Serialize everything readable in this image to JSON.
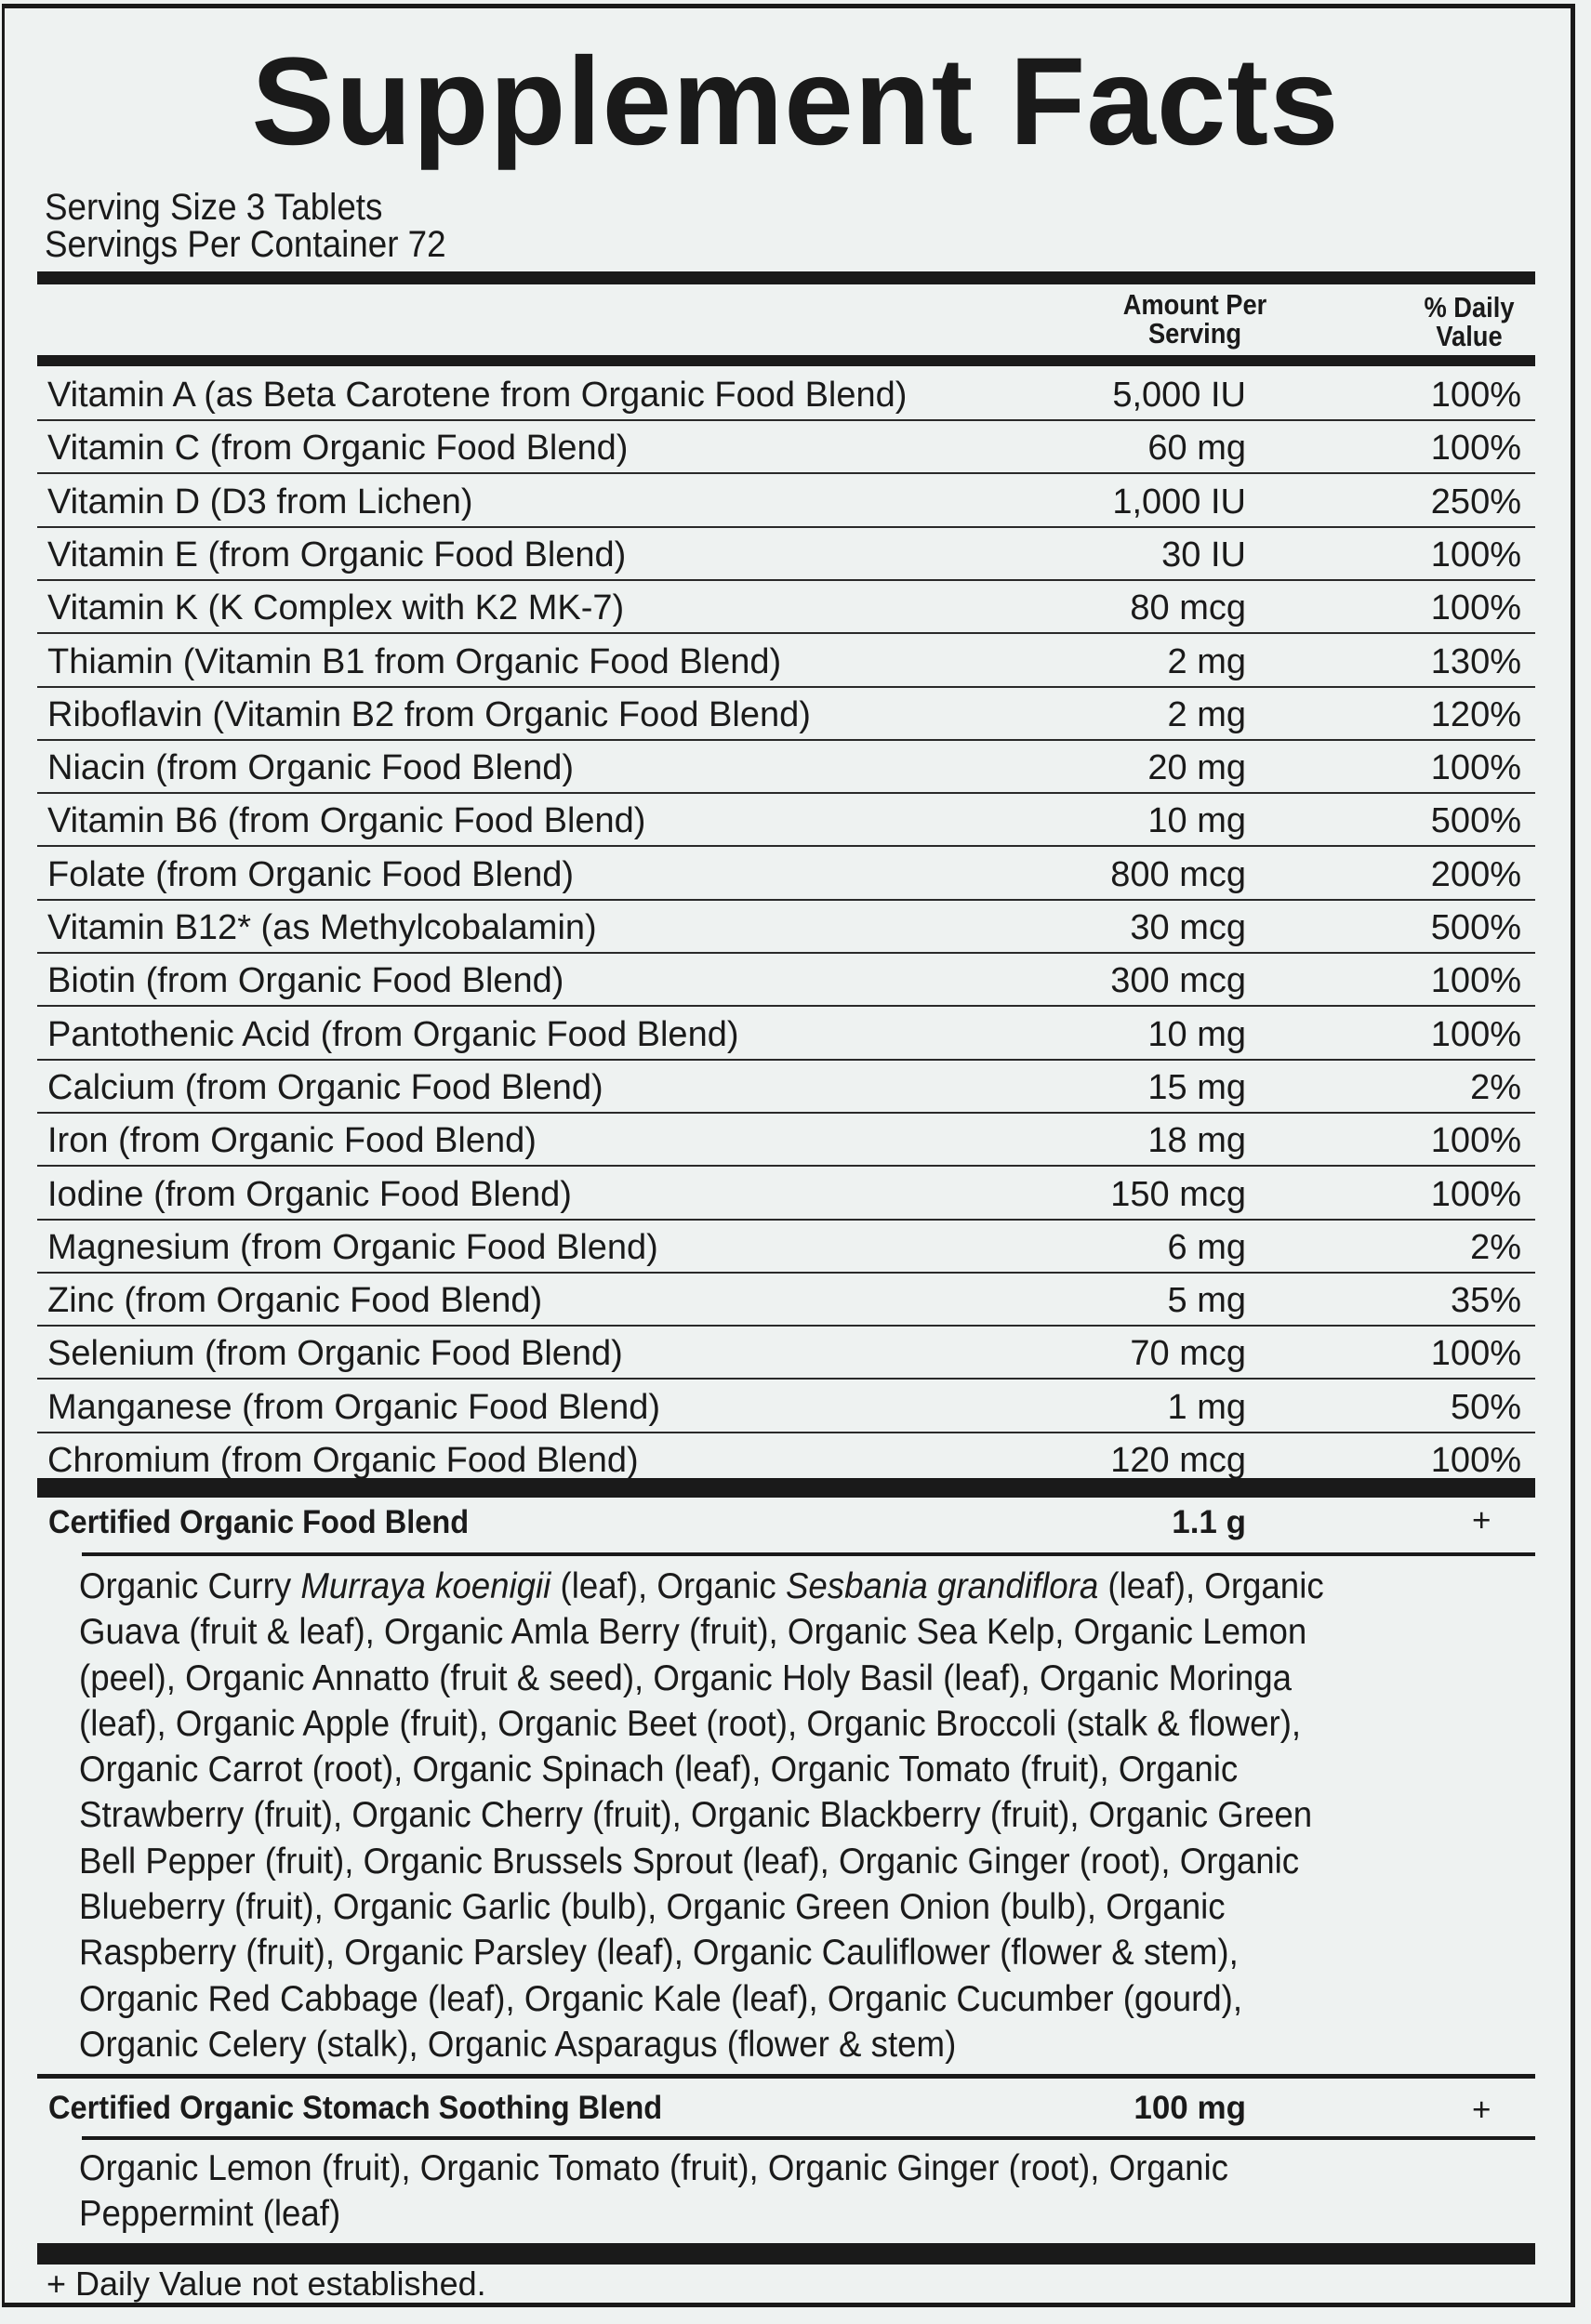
{
  "title": "Supplement Facts",
  "serving_size": "Serving Size 3 Tablets",
  "servings_per_container": "Servings Per Container 72",
  "headers": {
    "amount_line1": "Amount Per",
    "amount_line2": "Serving",
    "dv_line1": "% Daily",
    "dv_line2": "Value"
  },
  "nutrients": [
    {
      "name": "Vitamin A (as Beta Carotene from Organic Food Blend)",
      "amount": "5,000 IU",
      "dv": "100%"
    },
    {
      "name": "Vitamin C (from Organic Food Blend)",
      "amount": "60 mg",
      "dv": "100%"
    },
    {
      "name": "Vitamin D (D3 from Lichen)",
      "amount": "1,000 IU",
      "dv": "250%"
    },
    {
      "name": "Vitamin E (from Organic Food Blend)",
      "amount": "30 IU",
      "dv": "100%"
    },
    {
      "name": "Vitamin K (K Complex with K2 MK-7)",
      "amount": "80 mcg",
      "dv": "100%"
    },
    {
      "name": "Thiamin (Vitamin B1 from Organic Food Blend)",
      "amount": "2 mg",
      "dv": "130%"
    },
    {
      "name": "Riboflavin (Vitamin B2 from Organic Food Blend)",
      "amount": "2 mg",
      "dv": "120%"
    },
    {
      "name": "Niacin (from Organic Food Blend)",
      "amount": "20 mg",
      "dv": "100%"
    },
    {
      "name": "Vitamin B6 (from Organic Food Blend)",
      "amount": "10 mg",
      "dv": "500%"
    },
    {
      "name": "Folate (from Organic Food Blend)",
      "amount": "800 mcg",
      "dv": "200%"
    },
    {
      "name": "Vitamin B12* (as Methylcobalamin)",
      "amount": "30 mcg",
      "dv": "500%"
    },
    {
      "name": "Biotin (from Organic Food Blend)",
      "amount": "300 mcg",
      "dv": "100%"
    },
    {
      "name": "Pantothenic Acid (from Organic Food Blend)",
      "amount": "10 mg",
      "dv": "100%"
    },
    {
      "name": "Calcium (from Organic Food Blend)",
      "amount": "15 mg",
      "dv": "2%"
    },
    {
      "name": "Iron (from Organic Food Blend)",
      "amount": "18 mg",
      "dv": "100%"
    },
    {
      "name": "Iodine (from Organic Food Blend)",
      "amount": "150 mcg",
      "dv": "100%"
    },
    {
      "name": "Magnesium (from Organic Food Blend)",
      "amount": "6 mg",
      "dv": "2%"
    },
    {
      "name": "Zinc (from Organic Food Blend)",
      "amount": "5 mg",
      "dv": "35%"
    },
    {
      "name": "Selenium (from Organic Food Blend)",
      "amount": "70 mcg",
      "dv": "100%"
    },
    {
      "name": "Manganese (from Organic Food Blend)",
      "amount": "1 mg",
      "dv": "50%"
    },
    {
      "name": "Chromium (from Organic Food Blend)",
      "amount": "120 mcg",
      "dv": "100%"
    }
  ],
  "food_blend": {
    "name": "Certified Organic Food Blend",
    "amount": "1.1 g",
    "dv": "+",
    "lines": [
      [
        {
          "t": "Organic Curry "
        },
        {
          "t": "Murraya koenigii",
          "i": true
        },
        {
          "t": " (leaf), Organic "
        },
        {
          "t": "Sesbania grandiflora",
          "i": true
        },
        {
          "t": " (leaf), Organic"
        }
      ],
      [
        {
          "t": "Guava (fruit & leaf), Organic Amla Berry (fruit), Organic Sea Kelp, Organic Lemon"
        }
      ],
      [
        {
          "t": "(peel), Organic Annatto (fruit & seed), Organic Holy Basil (leaf), Organic Moringa"
        }
      ],
      [
        {
          "t": "(leaf), Organic Apple (fruit), Organic Beet (root), Organic Broccoli (stalk & flower),"
        }
      ],
      [
        {
          "t": "Organic Carrot (root), Organic Spinach (leaf), Organic Tomato (fruit), Organic"
        }
      ],
      [
        {
          "t": "Strawberry (fruit), Organic Cherry (fruit), Organic Blackberry (fruit), Organic Green"
        }
      ],
      [
        {
          "t": "Bell Pepper (fruit), Organic Brussels Sprout (leaf), Organic Ginger (root), Organic"
        }
      ],
      [
        {
          "t": "Blueberry (fruit), Organic Garlic (bulb), Organic Green Onion (bulb), Organic"
        }
      ],
      [
        {
          "t": "Raspberry (fruit), Organic Parsley (leaf), Organic Cauliflower (flower & stem),"
        }
      ],
      [
        {
          "t": "Organic Red Cabbage (leaf), Organic Kale (leaf), Organic Cucumber (gourd),"
        }
      ],
      [
        {
          "t": "Organic Celery (stalk), Organic Asparagus (flower & stem)"
        }
      ]
    ]
  },
  "stomach_blend": {
    "name": "Certified Organic Stomach Soothing Blend",
    "amount": "100 mg",
    "dv": "+",
    "lines": [
      [
        {
          "t": "Organic Lemon (fruit), Organic Tomato (fruit), Organic Ginger (root), Organic"
        }
      ],
      [
        {
          "t": "Peppermint (leaf)"
        }
      ]
    ]
  },
  "footer": "+ Daily Value not established."
}
